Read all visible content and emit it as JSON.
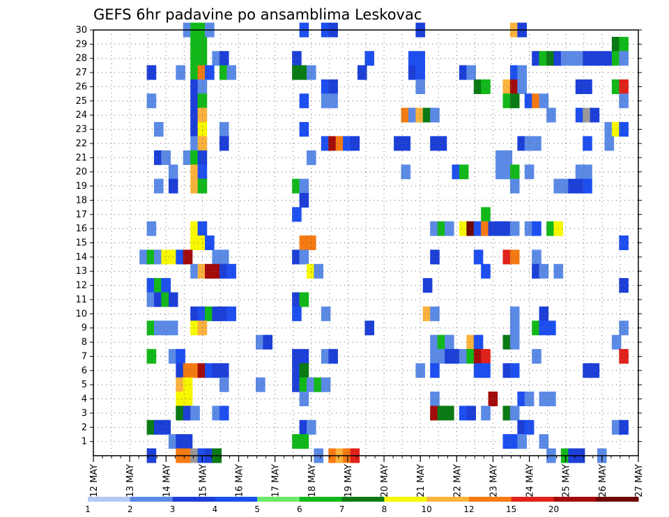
{
  "chart_data": {
    "type": "heatmap",
    "title": "GEFS 6hr padavine po ansamblima Leskovac",
    "xlabel": "",
    "ylabel": "",
    "x_tick_labels": [
      "12 MAY",
      "13 MAY",
      "14 MAY",
      "15 MAY",
      "16 MAY",
      "17 MAY",
      "18 MAY",
      "19 MAY",
      "20 MAY",
      "21 MAY",
      "22 MAY",
      "23 MAY",
      "24 MAY",
      "25 MAY",
      "26 MAY",
      "27 MAY"
    ],
    "x_range_days": [
      12,
      27
    ],
    "y_tick_labels": [
      "1",
      "2",
      "3",
      "4",
      "5",
      "6",
      "7",
      "8",
      "9",
      "10",
      "11",
      "12",
      "13",
      "14",
      "15",
      "16",
      "17",
      "18",
      "19",
      "20",
      "21",
      "22",
      "23",
      "24",
      "25",
      "26",
      "27",
      "28",
      "29",
      "30"
    ],
    "y_range": [
      0,
      30
    ],
    "grid": true,
    "colorbar": {
      "labels": [
        "1",
        "2",
        "3",
        "4",
        "5",
        "6",
        "7",
        "8",
        "10",
        "12",
        "15",
        "20"
      ],
      "colors": [
        "#b3c8f6",
        "#5b8ae6",
        "#1c3fd8",
        "#1d4ff0",
        "#6ce86a",
        "#12b81a",
        "#0a7a14",
        "#f7f700",
        "#fcb23c",
        "#f57a12",
        "#e0221a",
        "#a30a0a",
        "#6e0606"
      ]
    },
    "cells": [
      [
        14.6,
        30,
        1
      ],
      [
        14.8,
        30,
        5
      ],
      [
        15.0,
        30,
        5
      ],
      [
        15.2,
        30,
        1
      ],
      [
        17.8,
        30,
        3
      ],
      [
        18.4,
        30,
        3
      ],
      [
        18.6,
        30,
        2
      ],
      [
        21.0,
        30,
        2
      ],
      [
        23.6,
        30,
        8
      ],
      [
        23.8,
        30,
        2
      ],
      [
        14.8,
        29,
        5
      ],
      [
        15.0,
        29,
        5
      ],
      [
        26.4,
        29,
        6
      ],
      [
        26.6,
        29,
        5
      ],
      [
        14.8,
        28,
        5
      ],
      [
        15.0,
        28,
        5
      ],
      [
        15.4,
        28,
        1
      ],
      [
        15.6,
        28,
        2
      ],
      [
        17.6,
        28,
        2
      ],
      [
        19.6,
        28,
        3
      ],
      [
        20.8,
        28,
        3
      ],
      [
        21.0,
        28,
        3
      ],
      [
        24.2,
        28,
        2
      ],
      [
        24.4,
        28,
        5
      ],
      [
        24.6,
        28,
        6
      ],
      [
        24.8,
        28,
        2
      ],
      [
        25.0,
        28,
        1
      ],
      [
        25.2,
        28,
        1
      ],
      [
        25.4,
        28,
        1
      ],
      [
        25.6,
        28,
        2
      ],
      [
        25.8,
        28,
        2
      ],
      [
        26.0,
        28,
        2
      ],
      [
        26.2,
        28,
        2
      ],
      [
        26.4,
        28,
        5
      ],
      [
        26.6,
        28,
        1
      ],
      [
        13.6,
        27,
        2
      ],
      [
        14.4,
        27,
        1
      ],
      [
        14.8,
        27,
        5
      ],
      [
        15.0,
        27,
        9
      ],
      [
        15.2,
        27,
        3
      ],
      [
        15.6,
        27,
        5
      ],
      [
        15.8,
        27,
        1
      ],
      [
        17.6,
        27,
        6
      ],
      [
        17.8,
        27,
        6
      ],
      [
        18.0,
        27,
        1
      ],
      [
        19.4,
        27,
        2
      ],
      [
        20.8,
        27,
        2
      ],
      [
        21.0,
        27,
        3
      ],
      [
        22.2,
        27,
        2
      ],
      [
        22.4,
        27,
        1
      ],
      [
        23.6,
        27,
        3
      ],
      [
        23.8,
        27,
        1
      ],
      [
        14.8,
        26,
        2
      ],
      [
        15.0,
        26,
        1
      ],
      [
        18.4,
        26,
        3
      ],
      [
        18.6,
        26,
        2
      ],
      [
        21.0,
        26,
        1
      ],
      [
        22.6,
        26,
        6
      ],
      [
        22.8,
        26,
        5
      ],
      [
        23.4,
        26,
        8
      ],
      [
        23.6,
        26,
        11
      ],
      [
        23.8,
        26,
        1
      ],
      [
        25.4,
        26,
        2
      ],
      [
        25.6,
        26,
        2
      ],
      [
        26.4,
        26,
        5
      ],
      [
        26.6,
        26,
        10
      ],
      [
        13.6,
        25,
        1
      ],
      [
        14.8,
        25,
        2
      ],
      [
        15.0,
        25,
        5
      ],
      [
        17.8,
        25,
        3
      ],
      [
        18.4,
        25,
        1
      ],
      [
        18.6,
        25,
        1
      ],
      [
        23.4,
        25,
        5
      ],
      [
        23.6,
        25,
        6
      ],
      [
        24.0,
        25,
        3
      ],
      [
        24.2,
        25,
        9
      ],
      [
        24.4,
        25,
        1
      ],
      [
        26.6,
        25,
        1
      ],
      [
        14.8,
        24,
        2
      ],
      [
        15.0,
        24,
        8
      ],
      [
        20.6,
        24,
        9
      ],
      [
        20.8,
        24,
        1
      ],
      [
        21.0,
        24,
        8
      ],
      [
        21.2,
        24,
        6
      ],
      [
        21.4,
        24,
        1
      ],
      [
        24.6,
        24,
        1
      ],
      [
        25.4,
        24,
        3
      ],
      [
        25.6,
        24,
        13
      ],
      [
        25.8,
        24,
        2
      ],
      [
        13.8,
        23,
        1
      ],
      [
        14.8,
        23,
        2
      ],
      [
        15.0,
        23,
        7
      ],
      [
        15.6,
        23,
        1
      ],
      [
        17.8,
        23,
        3
      ],
      [
        26.2,
        23,
        1
      ],
      [
        26.4,
        23,
        7
      ],
      [
        26.6,
        23,
        3
      ],
      [
        14.8,
        22,
        1
      ],
      [
        15.0,
        22,
        8
      ],
      [
        15.6,
        22,
        2
      ],
      [
        18.4,
        22,
        3
      ],
      [
        18.6,
        22,
        11
      ],
      [
        18.8,
        22,
        9
      ],
      [
        19.0,
        22,
        3
      ],
      [
        19.2,
        22,
        2
      ],
      [
        20.4,
        22,
        2
      ],
      [
        20.6,
        22,
        2
      ],
      [
        21.4,
        22,
        2
      ],
      [
        21.6,
        22,
        2
      ],
      [
        23.8,
        22,
        2
      ],
      [
        24.0,
        22,
        1
      ],
      [
        24.2,
        22,
        1
      ],
      [
        25.6,
        22,
        3
      ],
      [
        26.2,
        22,
        1
      ],
      [
        13.8,
        21,
        2
      ],
      [
        14.0,
        21,
        1
      ],
      [
        14.6,
        21,
        1
      ],
      [
        14.8,
        21,
        5
      ],
      [
        15.0,
        21,
        2
      ],
      [
        18.0,
        21,
        1
      ],
      [
        23.2,
        21,
        1
      ],
      [
        23.4,
        21,
        1
      ],
      [
        14.2,
        20,
        1
      ],
      [
        14.8,
        20,
        8
      ],
      [
        15.0,
        20,
        3
      ],
      [
        20.6,
        20,
        1
      ],
      [
        22.0,
        20,
        3
      ],
      [
        22.2,
        20,
        5
      ],
      [
        23.2,
        20,
        1
      ],
      [
        23.4,
        20,
        1
      ],
      [
        23.6,
        20,
        5
      ],
      [
        24.0,
        20,
        1
      ],
      [
        25.4,
        20,
        1
      ],
      [
        25.6,
        20,
        1
      ],
      [
        13.8,
        19,
        1
      ],
      [
        14.2,
        19,
        2
      ],
      [
        14.8,
        19,
        8
      ],
      [
        15.0,
        19,
        5
      ],
      [
        17.6,
        19,
        5
      ],
      [
        17.8,
        19,
        1
      ],
      [
        23.6,
        19,
        1
      ],
      [
        24.8,
        19,
        1
      ],
      [
        25.0,
        19,
        1
      ],
      [
        25.2,
        19,
        2
      ],
      [
        25.4,
        19,
        2
      ],
      [
        25.6,
        19,
        3
      ],
      [
        17.8,
        18,
        2
      ],
      [
        17.6,
        17,
        3
      ],
      [
        22.8,
        17,
        5
      ],
      [
        13.6,
        16,
        1
      ],
      [
        14.8,
        16,
        7
      ],
      [
        15.0,
        16,
        3
      ],
      [
        21.4,
        16,
        1
      ],
      [
        21.6,
        16,
        5
      ],
      [
        21.8,
        16,
        1
      ],
      [
        22.2,
        16,
        7
      ],
      [
        22.4,
        16,
        12
      ],
      [
        22.6,
        16,
        3
      ],
      [
        22.8,
        16,
        9
      ],
      [
        23.0,
        16,
        2
      ],
      [
        23.2,
        16,
        2
      ],
      [
        23.4,
        16,
        2
      ],
      [
        23.6,
        16,
        1
      ],
      [
        24.0,
        16,
        1
      ],
      [
        24.2,
        16,
        3
      ],
      [
        24.6,
        16,
        5
      ],
      [
        24.8,
        16,
        7
      ],
      [
        14.8,
        15,
        7
      ],
      [
        15.0,
        15,
        7
      ],
      [
        15.2,
        15,
        3
      ],
      [
        17.8,
        15,
        9
      ],
      [
        18.0,
        15,
        9
      ],
      [
        26.6,
        15,
        3
      ],
      [
        13.4,
        14,
        1
      ],
      [
        13.6,
        14,
        5
      ],
      [
        13.8,
        14,
        1
      ],
      [
        14.0,
        14,
        7
      ],
      [
        14.2,
        14,
        7
      ],
      [
        14.4,
        14,
        3
      ],
      [
        14.6,
        14,
        11
      ],
      [
        15.4,
        14,
        1
      ],
      [
        15.6,
        14,
        1
      ],
      [
        17.6,
        14,
        2
      ],
      [
        17.8,
        14,
        1
      ],
      [
        21.4,
        14,
        2
      ],
      [
        22.6,
        14,
        3
      ],
      [
        23.4,
        14,
        10
      ],
      [
        23.6,
        14,
        9
      ],
      [
        24.2,
        14,
        1
      ],
      [
        14.8,
        13,
        1
      ],
      [
        15.0,
        13,
        8
      ],
      [
        15.2,
        13,
        11
      ],
      [
        15.4,
        13,
        11
      ],
      [
        15.6,
        13,
        2
      ],
      [
        15.8,
        13,
        3
      ],
      [
        18.0,
        13,
        7
      ],
      [
        18.2,
        13,
        1
      ],
      [
        22.8,
        13,
        3
      ],
      [
        24.2,
        13,
        2
      ],
      [
        24.4,
        13,
        1
      ],
      [
        24.8,
        13,
        1
      ],
      [
        13.6,
        12,
        3
      ],
      [
        13.8,
        12,
        5
      ],
      [
        14.0,
        12,
        3
      ],
      [
        21.2,
        12,
        2
      ],
      [
        26.6,
        12,
        2
      ],
      [
        13.6,
        11,
        1
      ],
      [
        13.8,
        11,
        2
      ],
      [
        14.0,
        11,
        5
      ],
      [
        14.2,
        11,
        2
      ],
      [
        17.6,
        11,
        2
      ],
      [
        17.8,
        11,
        5
      ],
      [
        14.8,
        10,
        2
      ],
      [
        15.0,
        10,
        3
      ],
      [
        15.2,
        10,
        5
      ],
      [
        15.4,
        10,
        2
      ],
      [
        15.6,
        10,
        2
      ],
      [
        15.8,
        10,
        3
      ],
      [
        17.6,
        10,
        3
      ],
      [
        18.4,
        10,
        1
      ],
      [
        21.2,
        10,
        8
      ],
      [
        21.4,
        10,
        1
      ],
      [
        23.6,
        10,
        1
      ],
      [
        24.4,
        10,
        2
      ],
      [
        13.6,
        9,
        5
      ],
      [
        13.8,
        9,
        1
      ],
      [
        14.0,
        9,
        1
      ],
      [
        14.2,
        9,
        1
      ],
      [
        14.8,
        9,
        7
      ],
      [
        15.0,
        9,
        8
      ],
      [
        19.6,
        9,
        2
      ],
      [
        23.6,
        9,
        1
      ],
      [
        24.2,
        9,
        5
      ],
      [
        24.4,
        9,
        3
      ],
      [
        24.6,
        9,
        3
      ],
      [
        26.6,
        9,
        1
      ],
      [
        16.6,
        8,
        1
      ],
      [
        16.8,
        8,
        2
      ],
      [
        21.4,
        8,
        1
      ],
      [
        21.6,
        8,
        5
      ],
      [
        21.8,
        8,
        1
      ],
      [
        22.4,
        8,
        8
      ],
      [
        22.6,
        8,
        3
      ],
      [
        23.4,
        8,
        6
      ],
      [
        23.6,
        8,
        1
      ],
      [
        26.4,
        8,
        1
      ],
      [
        13.6,
        7,
        5
      ],
      [
        14.2,
        7,
        1
      ],
      [
        14.4,
        7,
        3
      ],
      [
        17.6,
        7,
        2
      ],
      [
        17.8,
        7,
        2
      ],
      [
        18.4,
        7,
        1
      ],
      [
        18.6,
        7,
        2
      ],
      [
        21.4,
        7,
        1
      ],
      [
        21.6,
        7,
        1
      ],
      [
        21.8,
        7,
        2
      ],
      [
        22.0,
        7,
        2
      ],
      [
        22.2,
        7,
        1
      ],
      [
        22.4,
        7,
        5
      ],
      [
        22.6,
        7,
        11
      ],
      [
        22.8,
        7,
        10
      ],
      [
        24.2,
        7,
        1
      ],
      [
        26.6,
        7,
        10
      ],
      [
        14.4,
        6,
        2
      ],
      [
        14.6,
        6,
        9
      ],
      [
        14.8,
        6,
        9
      ],
      [
        15.0,
        6,
        11
      ],
      [
        15.2,
        6,
        3
      ],
      [
        15.4,
        6,
        2
      ],
      [
        15.6,
        6,
        2
      ],
      [
        17.6,
        6,
        2
      ],
      [
        17.8,
        6,
        6
      ],
      [
        21.0,
        6,
        1
      ],
      [
        21.4,
        6,
        3
      ],
      [
        22.6,
        6,
        3
      ],
      [
        22.8,
        6,
        3
      ],
      [
        23.4,
        6,
        2
      ],
      [
        23.6,
        6,
        3
      ],
      [
        25.6,
        6,
        2
      ],
      [
        25.8,
        6,
        2
      ],
      [
        14.4,
        5,
        8
      ],
      [
        14.6,
        5,
        7
      ],
      [
        15.6,
        5,
        1
      ],
      [
        16.6,
        5,
        1
      ],
      [
        17.6,
        5,
        2
      ],
      [
        17.8,
        5,
        5
      ],
      [
        18.0,
        5,
        1
      ],
      [
        18.2,
        5,
        5
      ],
      [
        18.4,
        5,
        1
      ],
      [
        14.4,
        4,
        7
      ],
      [
        14.6,
        4,
        7
      ],
      [
        17.8,
        4,
        1
      ],
      [
        21.4,
        4,
        1
      ],
      [
        23.0,
        4,
        11
      ],
      [
        23.8,
        4,
        3
      ],
      [
        24.0,
        4,
        1
      ],
      [
        24.4,
        4,
        1
      ],
      [
        24.6,
        4,
        1
      ],
      [
        14.4,
        3,
        6
      ],
      [
        14.6,
        3,
        2
      ],
      [
        14.8,
        3,
        1
      ],
      [
        15.4,
        3,
        1
      ],
      [
        15.6,
        3,
        3
      ],
      [
        21.4,
        3,
        11
      ],
      [
        21.6,
        3,
        6
      ],
      [
        21.8,
        3,
        6
      ],
      [
        22.2,
        3,
        3
      ],
      [
        22.4,
        3,
        2
      ],
      [
        22.8,
        3,
        1
      ],
      [
        23.4,
        3,
        6
      ],
      [
        23.6,
        3,
        1
      ],
      [
        13.6,
        2,
        6
      ],
      [
        13.8,
        2,
        2
      ],
      [
        14.0,
        2,
        2
      ],
      [
        17.8,
        2,
        2
      ],
      [
        18.0,
        2,
        1
      ],
      [
        23.8,
        2,
        2
      ],
      [
        24.0,
        2,
        3
      ],
      [
        26.4,
        2,
        1
      ],
      [
        26.6,
        2,
        2
      ],
      [
        14.2,
        1,
        1
      ],
      [
        14.4,
        1,
        2
      ],
      [
        14.6,
        1,
        2
      ],
      [
        17.6,
        1,
        5
      ],
      [
        17.8,
        1,
        5
      ],
      [
        23.4,
        1,
        3
      ],
      [
        23.6,
        1,
        3
      ],
      [
        23.8,
        1,
        1
      ],
      [
        24.4,
        1,
        1
      ],
      [
        13.6,
        0,
        2
      ],
      [
        14.4,
        0,
        9
      ],
      [
        14.6,
        0,
        9
      ],
      [
        14.8,
        0,
        13
      ],
      [
        15.0,
        0,
        3
      ],
      [
        15.2,
        0,
        2
      ],
      [
        15.4,
        0,
        6
      ],
      [
        18.2,
        0,
        1
      ],
      [
        18.6,
        0,
        9
      ],
      [
        18.8,
        0,
        8
      ],
      [
        19.0,
        0,
        9
      ],
      [
        19.2,
        0,
        10
      ],
      [
        24.6,
        0,
        1
      ],
      [
        25.0,
        0,
        5
      ],
      [
        25.2,
        0,
        2
      ],
      [
        25.4,
        0,
        2
      ],
      [
        26.0,
        0,
        1
      ]
    ]
  }
}
